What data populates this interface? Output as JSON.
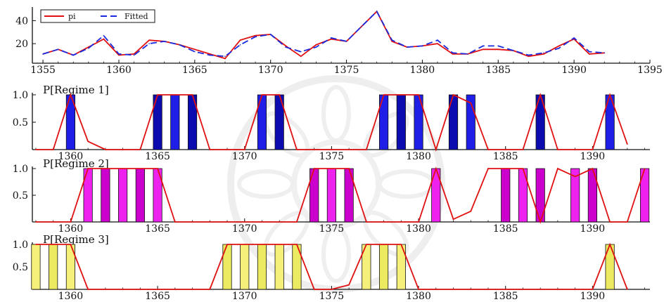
{
  "chart_data": [
    {
      "type": "line",
      "title": "",
      "xlabel": "",
      "ylabel": "",
      "xlim": [
        1354.3,
        1395
      ],
      "ylim": [
        3,
        50
      ],
      "x_ticks": [
        "1355",
        "1360",
        "1365",
        "1370",
        "1375",
        "1380",
        "1385",
        "1390",
        "1395"
      ],
      "y_ticks": [
        "20",
        "40"
      ],
      "legend_position": "top-left",
      "x": [
        1355,
        1356,
        1357,
        1358,
        1359,
        1360,
        1361,
        1362,
        1363,
        1364,
        1365,
        1366,
        1367,
        1368,
        1369,
        1370,
        1371,
        1372,
        1373,
        1374,
        1375,
        1376,
        1377,
        1378,
        1379,
        1380,
        1381,
        1382,
        1383,
        1384,
        1385,
        1386,
        1387,
        1388,
        1389,
        1390,
        1391,
        1392
      ],
      "series": [
        {
          "name": "pi",
          "color": "#e01010",
          "style": "solid",
          "values": [
            11,
            15,
            10,
            17,
            24,
            10,
            11,
            23,
            22,
            19,
            15,
            11,
            7,
            23,
            27,
            28,
            18,
            9,
            19,
            24,
            22,
            35,
            48,
            22,
            17,
            18,
            20,
            11,
            11,
            15,
            15,
            14,
            9,
            11,
            18,
            24,
            11,
            12
          ]
        },
        {
          "name": "Fitted",
          "color": "#1a2ae0",
          "style": "dashed",
          "values": [
            11,
            15,
            10,
            16,
            27,
            11,
            10,
            20,
            22,
            19,
            13,
            10,
            9,
            19,
            26,
            28,
            17,
            13,
            17,
            25,
            22,
            35,
            48,
            23,
            17,
            18,
            23,
            12,
            11,
            18,
            18,
            14,
            10,
            12,
            16,
            25,
            13,
            12
          ]
        }
      ]
    },
    {
      "type": "bar",
      "title": "P[Regime 1]",
      "xlabel": "",
      "ylabel": "",
      "xlim": [
        1357.8,
        1393.3
      ],
      "ylim": [
        0,
        1.0
      ],
      "x_ticks": [
        "1360",
        "1365",
        "1370",
        "1375",
        "1380",
        "1385",
        "1390"
      ],
      "y_ticks": [
        "0.5",
        "1.0"
      ],
      "bar_colors": [
        "#1e1ee6",
        "#0b0bb0"
      ],
      "bar_years": [
        1360,
        1365,
        1366,
        1367,
        1371,
        1372,
        1378,
        1379,
        1380,
        1382,
        1383,
        1387,
        1391
      ],
      "line": {
        "color": "#e01010",
        "x": [
          1358,
          1359,
          1360,
          1361,
          1362,
          1363,
          1364,
          1365,
          1366,
          1367,
          1368,
          1369,
          1370,
          1371,
          1372,
          1373,
          1374,
          1375,
          1376,
          1377,
          1378,
          1379,
          1380,
          1381,
          1382,
          1383,
          1384,
          1385,
          1386,
          1387,
          1388,
          1389,
          1390,
          1391,
          1392
        ],
        "values": [
          0,
          0,
          1.0,
          0.15,
          0,
          0,
          0,
          1.0,
          1.0,
          1.0,
          0,
          0,
          0,
          1.0,
          1.0,
          0,
          0,
          0,
          0,
          0,
          1.0,
          1.0,
          1.0,
          0,
          1.0,
          0.85,
          0,
          0,
          0,
          1.0,
          0,
          0,
          0,
          1.0,
          0.1
        ]
      }
    },
    {
      "type": "bar",
      "title": "P[Regime 2]",
      "xlabel": "",
      "ylabel": "",
      "xlim": [
        1357.8,
        1393.3
      ],
      "ylim": [
        0,
        1.0
      ],
      "x_ticks": [
        "1360",
        "1365",
        "1370",
        "1375",
        "1380",
        "1385",
        "1390"
      ],
      "y_ticks": [
        "0.5",
        "1.0"
      ],
      "bar_colors": [
        "#ee22ee",
        "#cc00cc"
      ],
      "bar_years": [
        1361,
        1362,
        1363,
        1364,
        1365,
        1374,
        1375,
        1376,
        1381,
        1385,
        1386,
        1387,
        1389,
        1390,
        1393
      ],
      "line": {
        "color": "#e01010",
        "x": [
          1358,
          1359,
          1360,
          1361,
          1362,
          1363,
          1364,
          1365,
          1366,
          1367,
          1368,
          1369,
          1370,
          1371,
          1372,
          1373,
          1374,
          1375,
          1376,
          1377,
          1378,
          1379,
          1380,
          1381,
          1382,
          1383,
          1384,
          1385,
          1386,
          1387,
          1388,
          1389,
          1390,
          1391,
          1392,
          1393
        ],
        "values": [
          0,
          0,
          0,
          1.0,
          1.0,
          1.0,
          1.0,
          1.0,
          0,
          0,
          0,
          0,
          0,
          0,
          0,
          0,
          1.0,
          1.0,
          1.0,
          0,
          0,
          0,
          0,
          1.0,
          0.05,
          0.2,
          1.0,
          1.0,
          1.0,
          0,
          1.0,
          0.85,
          1.0,
          0,
          0,
          1.0
        ]
      }
    },
    {
      "type": "bar",
      "title": "P[Regime 3]",
      "xlabel": "",
      "ylabel": "",
      "xlim": [
        1357.8,
        1393.3
      ],
      "ylim": [
        0,
        1.0
      ],
      "x_ticks": [
        "1360",
        "1365",
        "1370",
        "1375",
        "1380",
        "1385",
        "1390"
      ],
      "y_ticks": [
        "0.5",
        "1.0"
      ],
      "bar_colors": [
        "#f5f07a",
        "#ecea60"
      ],
      "bar_years": [
        1358,
        1359,
        1360,
        1369,
        1370,
        1371,
        1372,
        1373,
        1377,
        1378,
        1379,
        1391
      ],
      "line": {
        "color": "#e01010",
        "x": [
          1358,
          1359,
          1360,
          1361,
          1362,
          1363,
          1364,
          1365,
          1366,
          1367,
          1368,
          1369,
          1370,
          1371,
          1372,
          1373,
          1374,
          1375,
          1376,
          1377,
          1378,
          1379,
          1380,
          1381,
          1382,
          1383,
          1384,
          1385,
          1386,
          1387,
          1388,
          1389,
          1390,
          1391,
          1392
        ],
        "values": [
          1.0,
          1.0,
          1.0,
          0,
          0,
          0,
          0,
          0,
          0,
          0,
          0,
          1.0,
          1.0,
          1.0,
          1.0,
          1.0,
          0,
          0,
          0.1,
          1.0,
          1.0,
          1.0,
          0,
          0,
          0,
          0,
          0,
          0,
          0,
          0,
          0,
          0,
          0,
          1.0,
          0
        ]
      }
    }
  ]
}
